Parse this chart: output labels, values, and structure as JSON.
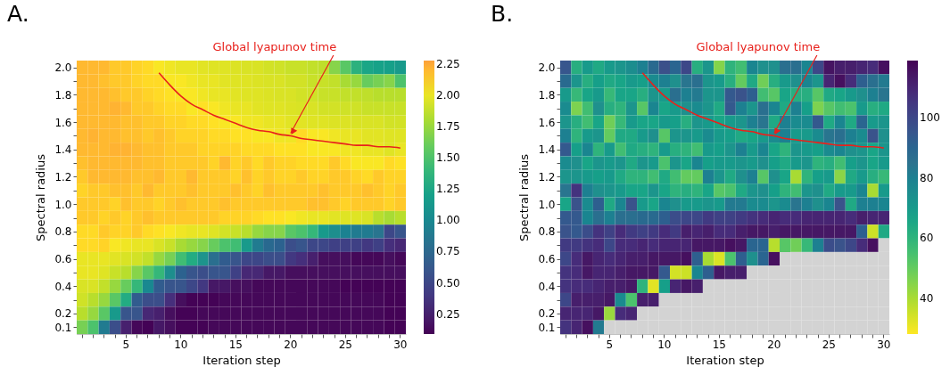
{
  "chart_data": [
    {
      "type": "heatmap",
      "title": "A.",
      "xlabel": "Iteration step",
      "ylabel": "Spectral radius",
      "categories": [
        null,
        null,
        null,
        null,
        "5",
        null,
        null,
        null,
        null,
        "10",
        null,
        null,
        null,
        null,
        "15",
        null,
        null,
        null,
        null,
        "20",
        null,
        null,
        null,
        null,
        "25",
        null,
        null,
        null,
        null,
        "30"
      ],
      "ylim": [
        0.05,
        2.05
      ],
      "yticks": [
        {
          "value": 2,
          "label": "2.0"
        },
        {
          "value": 1.9,
          "label": null
        },
        1.8,
        {
          "value": 1.7,
          "label": null
        },
        1.6,
        {
          "value": 1.5,
          "label": null
        },
        1.4,
        {
          "value": 1.3,
          "label": null
        },
        1.2,
        {
          "value": 1.1,
          "label": null
        },
        {
          "value": 1,
          "label": "1.0"
        },
        {
          "value": 0.9,
          "label": null
        },
        0.8,
        {
          "value": 0.7,
          "label": null
        },
        0.6,
        {
          "value": 0.5,
          "label": null
        },
        0.4,
        {
          "value": 0.3,
          "label": null
        },
        0.2,
        0.1
      ],
      "cells": [
        [
          2.2,
          2.2,
          2.2,
          2.15,
          2.15,
          2.12,
          2.1,
          2.05,
          2.02,
          2.0,
          2.0,
          1.98,
          1.97,
          1.97,
          1.96,
          1.95,
          1.95,
          1.93,
          1.92,
          1.9,
          1.9,
          1.88,
          1.87,
          1.7,
          1.55,
          1.35,
          1.25,
          1.22,
          1.2,
          1.15
        ],
        [
          2.2,
          2.2,
          2.18,
          2.15,
          2.15,
          2.12,
          2.1,
          2.1,
          2.05,
          2.05,
          2.02,
          2.0,
          2.0,
          1.98,
          1.97,
          1.97,
          1.96,
          1.95,
          1.95,
          1.93,
          1.93,
          1.9,
          1.9,
          1.88,
          1.8,
          1.75,
          1.6,
          1.65,
          1.7,
          1.5
        ],
        [
          2.2,
          2.2,
          2.2,
          2.18,
          2.15,
          2.15,
          2.12,
          2.1,
          2.08,
          2.05,
          2.05,
          2.02,
          2.0,
          2.0,
          1.98,
          1.97,
          1.97,
          1.96,
          1.95,
          1.95,
          1.93,
          1.92,
          1.9,
          1.9,
          1.88,
          1.88,
          1.87,
          1.85,
          1.85,
          1.85
        ],
        [
          2.2,
          2.2,
          2.2,
          2.22,
          2.2,
          2.15,
          2.15,
          2.12,
          2.1,
          2.1,
          2.05,
          2.08,
          2.05,
          2.02,
          2.0,
          2.0,
          1.98,
          1.97,
          1.97,
          1.96,
          1.95,
          1.95,
          1.93,
          1.93,
          1.92,
          1.92,
          1.9,
          1.9,
          1.9,
          1.9
        ],
        [
          2.2,
          2.2,
          2.2,
          2.2,
          2.18,
          2.18,
          2.15,
          2.15,
          2.12,
          2.12,
          2.1,
          2.1,
          2.08,
          2.05,
          2.05,
          2.02,
          2.02,
          2.0,
          2.0,
          1.98,
          1.98,
          1.97,
          1.97,
          1.96,
          1.96,
          1.95,
          1.95,
          1.95,
          1.93,
          1.93
        ],
        [
          2.2,
          2.22,
          2.2,
          2.2,
          2.18,
          2.18,
          2.15,
          2.18,
          2.15,
          2.12,
          2.12,
          2.12,
          2.1,
          2.1,
          2.08,
          2.08,
          2.05,
          2.05,
          2.02,
          2.02,
          2.1,
          2.05,
          2.05,
          2.02,
          2.0,
          2.0,
          1.98,
          1.98,
          1.97,
          1.97
        ],
        [
          2.2,
          2.2,
          2.2,
          2.22,
          2.22,
          2.2,
          2.18,
          2.18,
          2.15,
          2.15,
          2.15,
          2.12,
          2.12,
          2.12,
          2.12,
          2.1,
          2.1,
          2.1,
          2.08,
          2.08,
          2.08,
          2.05,
          2.05,
          2.05,
          2.02,
          2.02,
          2.0,
          2.0,
          1.97,
          2.0
        ],
        [
          2.18,
          2.2,
          2.2,
          2.2,
          2.2,
          2.2,
          2.18,
          2.18,
          2.15,
          2.15,
          2.15,
          2.15,
          2.12,
          2.2,
          2.12,
          2.15,
          2.1,
          2.15,
          2.12,
          2.12,
          2.1,
          2.1,
          2.1,
          2.15,
          2.1,
          2.05,
          2.05,
          2.05,
          2.1,
          2.08
        ],
        [
          2.15,
          2.2,
          2.2,
          2.2,
          2.2,
          2.18,
          2.18,
          2.2,
          2.15,
          2.15,
          2.2,
          2.15,
          2.15,
          2.15,
          2.12,
          2.18,
          2.12,
          2.15,
          2.12,
          2.12,
          2.15,
          2.12,
          2.12,
          2.15,
          2.15,
          2.12,
          2.1,
          2.15,
          2.12,
          2.12
        ],
        [
          2.12,
          2.15,
          2.15,
          2.18,
          2.18,
          2.15,
          2.2,
          2.15,
          2.15,
          2.15,
          2.18,
          2.15,
          2.15,
          2.15,
          2.18,
          2.15,
          2.12,
          2.18,
          2.15,
          2.15,
          2.15,
          2.15,
          2.18,
          2.15,
          2.15,
          2.15,
          2.18,
          2.15,
          2.12,
          2.15
        ],
        [
          2.15,
          2.15,
          2.15,
          2.12,
          2.18,
          2.15,
          2.15,
          2.12,
          2.15,
          2.18,
          2.15,
          2.15,
          2.15,
          2.18,
          2.15,
          2.15,
          2.15,
          2.15,
          2.15,
          2.15,
          2.15,
          2.18,
          2.18,
          2.15,
          2.12,
          2.15,
          2.15,
          2.15,
          2.12,
          2.15
        ],
        [
          2.15,
          2.15,
          2.12,
          2.15,
          2.12,
          2.15,
          2.18,
          2.15,
          2.15,
          2.15,
          2.15,
          2.15,
          2.15,
          2.12,
          2.12,
          2.12,
          2.1,
          2.08,
          2.08,
          2.05,
          2.02,
          2.0,
          2.0,
          1.98,
          1.97,
          1.97,
          1.95,
          1.85,
          1.8,
          1.85
        ],
        [
          2.1,
          2.1,
          2.15,
          2.12,
          2.12,
          2.15,
          2.1,
          2.08,
          2.05,
          2.02,
          2.0,
          2.0,
          1.97,
          1.93,
          1.9,
          1.85,
          1.75,
          1.7,
          1.7,
          1.55,
          1.5,
          1.4,
          1.15,
          1.05,
          0.95,
          0.9,
          0.9,
          0.85,
          0.5,
          0.6
        ],
        [
          2.1,
          2.1,
          2.12,
          2.05,
          2.02,
          2.0,
          2.0,
          1.95,
          1.9,
          1.8,
          1.75,
          1.7,
          1.6,
          1.5,
          1.45,
          1.15,
          0.9,
          0.75,
          0.7,
          0.55,
          0.6,
          0.5,
          0.5,
          0.45,
          0.45,
          0.45,
          0.4,
          0.45,
          0.35,
          0.3
        ],
        [
          2.0,
          2.0,
          2.0,
          1.98,
          1.95,
          1.93,
          1.88,
          1.75,
          1.65,
          1.45,
          1.3,
          1.1,
          0.8,
          0.65,
          0.6,
          0.5,
          0.5,
          0.55,
          0.55,
          0.4,
          0.35,
          0.25,
          0.15,
          0.15,
          0.15,
          0.12,
          0.12,
          0.12,
          0.15,
          0.12
        ],
        [
          2.0,
          2.0,
          1.97,
          1.9,
          1.85,
          1.7,
          1.55,
          1.4,
          1.05,
          0.7,
          0.6,
          0.55,
          0.6,
          0.6,
          0.45,
          0.3,
          0.3,
          0.2,
          0.2,
          0.15,
          0.15,
          0.15,
          0.15,
          0.15,
          0.15,
          0.15,
          0.15,
          0.15,
          0.15,
          0.15
        ],
        [
          1.95,
          1.95,
          1.88,
          1.75,
          1.6,
          1.4,
          1.0,
          0.65,
          0.6,
          0.6,
          0.5,
          0.4,
          0.2,
          0.2,
          0.15,
          0.15,
          0.12,
          0.12,
          0.12,
          0.12,
          0.12,
          0.12,
          0.12,
          0.12,
          0.1,
          0.1,
          0.1,
          0.1,
          0.1,
          0.1
        ],
        [
          1.92,
          1.85,
          1.75,
          1.55,
          1.3,
          0.65,
          0.55,
          0.55,
          0.35,
          0.15,
          0.1,
          0.1,
          0.1,
          0.12,
          0.12,
          0.12,
          0.12,
          0.12,
          0.12,
          0.12,
          0.12,
          0.12,
          0.12,
          0.12,
          0.12,
          0.12,
          0.12,
          0.12,
          0.1,
          0.1
        ],
        [
          1.85,
          1.75,
          1.55,
          1.15,
          0.6,
          0.6,
          0.3,
          0.25,
          0.15,
          0.1,
          0.1,
          0.12,
          0.12,
          0.12,
          0.12,
          0.12,
          0.12,
          0.12,
          0.12,
          0.12,
          0.12,
          0.12,
          0.12,
          0.12,
          0.12,
          0.12,
          0.12,
          0.12,
          0.1,
          0.1
        ],
        [
          1.65,
          1.5,
          0.9,
          0.55,
          0.25,
          0.12,
          0.1,
          0.2,
          0.15,
          0.1,
          0.1,
          0.1,
          0.12,
          0.12,
          0.12,
          0.12,
          0.12,
          0.12,
          0.12,
          0.12,
          0.12,
          0.12,
          0.12,
          0.12,
          0.12,
          0.12,
          0.12,
          0.12,
          0.1,
          0.1
        ]
      ],
      "clim": [
        0.09,
        2.28
      ],
      "cticks": [
        0.25,
        {
          "value": 0.5,
          "label": "0.50"
        },
        0.75,
        {
          "value": 1,
          "label": "1.00"
        },
        1.25,
        {
          "value": 1.5,
          "label": "1.50"
        },
        1.75,
        {
          "value": 2,
          "label": "2.00"
        },
        2.25
      ],
      "series": [
        {
          "type": "line",
          "color": "#e8211c",
          "values": [
            null,
            null,
            null,
            null,
            null,
            null,
            null,
            1.96,
            1.87,
            1.79,
            1.73,
            1.69,
            1.65,
            1.62,
            1.59,
            1.56,
            1.54,
            1.53,
            1.51,
            1.5,
            1.48,
            1.47,
            1.46,
            1.45,
            1.44,
            1.43,
            1.43,
            1.42,
            1.42,
            1.41
          ]
        }
      ],
      "annotations": [
        {
          "text": "Global lyapunov time",
          "x": "20",
          "y": 1.5
        }
      ]
    },
    {
      "type": "heatmap",
      "title": "B.",
      "xlabel": "Iteration step",
      "ylabel": "Spectral radius",
      "categories": [
        null,
        null,
        null,
        null,
        "5",
        null,
        null,
        null,
        null,
        "10",
        null,
        null,
        null,
        null,
        "15",
        null,
        null,
        null,
        null,
        "20",
        null,
        null,
        null,
        null,
        "25",
        null,
        null,
        null,
        null,
        "30"
      ],
      "ylim": [
        0.05,
        2.05
      ],
      "yticks": [
        {
          "value": 2,
          "label": "2.0"
        },
        {
          "value": 1.9,
          "label": null
        },
        1.8,
        {
          "value": 1.7,
          "label": null
        },
        1.6,
        {
          "value": 1.5,
          "label": null
        },
        1.4,
        {
          "value": 1.3,
          "label": null
        },
        1.2,
        {
          "value": 1.1,
          "label": null
        },
        {
          "value": 1,
          "label": "1.0"
        },
        {
          "value": 0.9,
          "label": null
        },
        0.8,
        {
          "value": 0.7,
          "label": null
        },
        0.6,
        {
          "value": 0.5,
          "label": null
        },
        0.4,
        {
          "value": 0.3,
          "label": null
        },
        0.2,
        0.1
      ],
      "cells": [
        [
          95,
          62,
          70,
          64,
          70,
          72,
          75,
          80,
          88,
          97,
          90,
          100,
          62,
          72,
          45,
          60,
          56,
          78,
          74,
          74,
          86,
          86,
          78,
          100,
          115,
          112,
          112,
          110,
          108,
          116
        ],
        [
          88,
          72,
          62,
          68,
          64,
          66,
          70,
          68,
          76,
          80,
          74,
          84,
          86,
          72,
          70,
          62,
          50,
          64,
          48,
          62,
          70,
          74,
          78,
          72,
          110,
          116,
          108,
          92,
          86,
          82
        ],
        [
          70,
          58,
          66,
          70,
          58,
          66,
          66,
          62,
          72,
          70,
          86,
          80,
          82,
          72,
          72,
          94,
          96,
          92,
          56,
          52,
          66,
          62,
          62,
          52,
          64,
          66,
          70,
          74,
          80,
          84
        ],
        [
          76,
          46,
          56,
          74,
          62,
          60,
          72,
          52,
          78,
          66,
          70,
          74,
          76,
          72,
          64,
          94,
          80,
          72,
          86,
          78,
          64,
          80,
          68,
          46,
          52,
          56,
          54,
          70,
          62,
          64
        ],
        [
          72,
          62,
          56,
          66,
          48,
          58,
          70,
          66,
          66,
          70,
          68,
          62,
          72,
          70,
          66,
          70,
          72,
          80,
          84,
          64,
          80,
          76,
          76,
          94,
          64,
          78,
          64,
          90,
          70,
          72
        ],
        [
          80,
          60,
          70,
          72,
          50,
          64,
          64,
          70,
          74,
          52,
          72,
          72,
          70,
          76,
          70,
          68,
          64,
          66,
          70,
          76,
          80,
          70,
          70,
          76,
          84,
          86,
          80,
          76,
          96,
          74
        ],
        [
          94,
          68,
          78,
          60,
          70,
          56,
          64,
          62,
          60,
          70,
          62,
          60,
          56,
          70,
          68,
          72,
          80,
          70,
          78,
          66,
          60,
          72,
          70,
          68,
          76,
          78,
          74,
          72,
          66,
          72
        ],
        [
          76,
          74,
          66,
          72,
          70,
          72,
          64,
          72,
          70,
          54,
          72,
          66,
          78,
          68,
          70,
          70,
          72,
          70,
          74,
          68,
          64,
          70,
          72,
          60,
          62,
          56,
          68,
          72,
          66,
          70
        ],
        [
          72,
          72,
          70,
          68,
          70,
          64,
          60,
          60,
          56,
          64,
          56,
          50,
          50,
          80,
          72,
          64,
          74,
          80,
          52,
          74,
          66,
          40,
          60,
          68,
          70,
          44,
          64,
          70,
          62,
          58
        ],
        [
          84,
          106,
          80,
          74,
          72,
          70,
          66,
          66,
          72,
          66,
          60,
          62,
          60,
          66,
          52,
          54,
          64,
          72,
          74,
          68,
          60,
          56,
          72,
          74,
          64,
          70,
          70,
          78,
          40,
          70
        ],
        [
          66,
          96,
          76,
          92,
          64,
          78,
          96,
          70,
          66,
          78,
          74,
          70,
          70,
          72,
          70,
          82,
          82,
          76,
          76,
          72,
          76,
          84,
          80,
          74,
          78,
          96,
          64,
          80,
          80,
          78
        ],
        [
          94,
          94,
          78,
          86,
          80,
          86,
          86,
          88,
          88,
          92,
          98,
          100,
          100,
          104,
          102,
          102,
          104,
          106,
          108,
          110,
          108,
          108,
          110,
          110,
          110,
          110,
          108,
          112,
          110,
          110
        ],
        [
          96,
          94,
          98,
          106,
          102,
          108,
          104,
          102,
          104,
          108,
          104,
          112,
          110,
          112,
          108,
          108,
          112,
          114,
          114,
          112,
          114,
          114,
          114,
          114,
          114,
          114,
          114,
          92,
          35,
          64
        ],
        [
          104,
          104,
          106,
          108,
          100,
          108,
          108,
          110,
          108,
          110,
          110,
          110,
          114,
          114,
          114,
          116,
          114,
          90,
          90,
          38,
          52,
          48,
          58,
          80,
          98,
          96,
          100,
          108,
          116,
          null
        ],
        [
          100,
          108,
          114,
          110,
          108,
          110,
          112,
          112,
          114,
          114,
          114,
          116,
          92,
          40,
          33,
          54,
          92,
          74,
          90,
          116,
          null,
          null,
          null,
          null,
          null,
          null,
          null,
          null,
          null,
          null
        ],
        [
          106,
          108,
          114,
          110,
          110,
          112,
          114,
          114,
          114,
          94,
          34,
          35,
          78,
          92,
          114,
          112,
          112,
          null,
          null,
          null,
          null,
          null,
          null,
          null,
          null,
          null,
          null,
          null,
          null,
          null
        ],
        [
          106,
          108,
          108,
          110,
          112,
          112,
          114,
          60,
          32,
          68,
          110,
          114,
          112,
          null,
          null,
          null,
          null,
          null,
          null,
          null,
          null,
          null,
          null,
          null,
          null,
          null,
          null,
          null,
          null,
          null
        ],
        [
          100,
          112,
          112,
          112,
          114,
          76,
          54,
          112,
          112,
          null,
          null,
          null,
          null,
          null,
          null,
          null,
          null,
          null,
          null,
          null,
          null,
          null,
          null,
          null,
          null,
          null,
          null,
          null,
          null,
          null
        ],
        [
          110,
          110,
          110,
          114,
          42,
          108,
          110,
          null,
          null,
          null,
          null,
          null,
          null,
          null,
          null,
          null,
          null,
          null,
          null,
          null,
          null,
          null,
          null,
          null,
          null,
          null,
          null,
          null,
          null,
          null
        ],
        [
          106,
          110,
          116,
          82,
          null,
          null,
          null,
          null,
          null,
          null,
          null,
          null,
          null,
          null,
          null,
          null,
          null,
          null,
          null,
          null,
          null,
          null,
          null,
          null,
          null,
          null,
          null,
          null,
          null,
          null
        ]
      ],
      "clim": [
        28,
        119
      ],
      "cticks": [
        40,
        60,
        80,
        100
      ],
      "series": [
        {
          "type": "line",
          "color": "#e8211c",
          "values": [
            null,
            null,
            null,
            null,
            null,
            null,
            null,
            1.96,
            1.87,
            1.79,
            1.73,
            1.69,
            1.65,
            1.62,
            1.59,
            1.56,
            1.54,
            1.53,
            1.51,
            1.5,
            1.48,
            1.47,
            1.46,
            1.45,
            1.44,
            1.43,
            1.43,
            1.42,
            1.42,
            1.41
          ]
        }
      ],
      "annotations": [
        {
          "text": "Global lyapunov time",
          "x": "20",
          "y": 1.5
        }
      ]
    }
  ]
}
